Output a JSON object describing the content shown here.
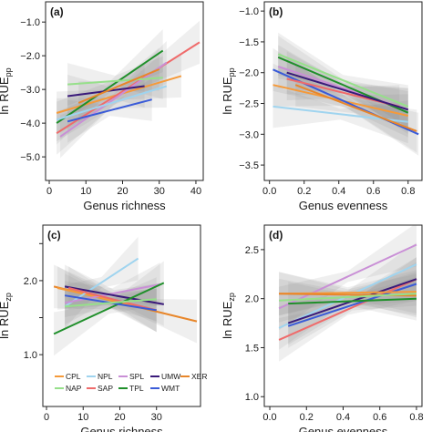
{
  "legend": [
    {
      "name": "CPL",
      "color": "#f59a3a"
    },
    {
      "name": "NPL",
      "color": "#9fd4ef"
    },
    {
      "name": "SPL",
      "color": "#c98fd6"
    },
    {
      "name": "UMW",
      "color": "#3a1a7a"
    },
    {
      "name": "XER",
      "color": "#e8862a"
    },
    {
      "name": "NAP",
      "color": "#96e08a"
    },
    {
      "name": "SAP",
      "color": "#ef6b6b"
    },
    {
      "name": "TPL",
      "color": "#1f8f2a"
    },
    {
      "name": "WMT",
      "color": "#3a5bd8"
    }
  ],
  "chart_data": [
    {
      "panel": "(a)",
      "type": "line",
      "xlabel": "Genus richness",
      "ylabel_main": "ln RUE",
      "ylabel_sub": "pp",
      "xlim": [
        -1,
        42
      ],
      "ylim": [
        -5.7,
        -0.4
      ],
      "xticks": [
        0,
        10,
        20,
        30,
        40
      ],
      "yticks": [
        -5.0,
        -4.0,
        -3.0,
        -2.0,
        -1.0
      ],
      "ytick_labels": [
        "−5.0",
        "−4.0",
        "−3.0",
        "−2.0",
        "−1.0"
      ],
      "series": [
        {
          "name": "CPL",
          "x": [
            2,
            36
          ],
          "y": [
            -3.7,
            -2.6
          ]
        },
        {
          "name": "SAP",
          "x": [
            2,
            41
          ],
          "y": [
            -4.3,
            -1.6
          ]
        },
        {
          "name": "TPL",
          "x": [
            2,
            31
          ],
          "y": [
            -4.0,
            -1.85
          ]
        },
        {
          "name": "SPL",
          "x": [
            3,
            32
          ],
          "y": [
            -4.4,
            -2.2
          ]
        },
        {
          "name": "NAP",
          "x": [
            5,
            31
          ],
          "y": [
            -2.85,
            -2.65
          ]
        },
        {
          "name": "UMW",
          "x": [
            5,
            26
          ],
          "y": [
            -3.2,
            -2.9
          ]
        },
        {
          "name": "WMT",
          "x": [
            5,
            28
          ],
          "y": [
            -3.95,
            -3.3
          ]
        },
        {
          "name": "XER",
          "x": [
            8,
            30
          ],
          "y": [
            -3.4,
            -2.4
          ]
        },
        {
          "name": "NPL",
          "x": [
            2,
            32
          ],
          "y": [
            -3.9,
            -2.9
          ]
        }
      ]
    },
    {
      "panel": "(b)",
      "type": "line",
      "xlabel": "Genus evenness",
      "ylabel_main": "ln RUE",
      "ylabel_sub": "pp",
      "xlim": [
        -0.03,
        0.88
      ],
      "ylim": [
        -3.75,
        -0.85
      ],
      "xticks": [
        0.0,
        0.2,
        0.4,
        0.6,
        0.8
      ],
      "yticks": [
        -3.5,
        -3.0,
        -2.5,
        -2.0,
        -1.5,
        -1.0
      ],
      "xtick_labels": [
        "0.0",
        "0.2",
        "0.4",
        "0.6",
        "0.8"
      ],
      "ytick_labels": [
        "−3.5",
        "−3.0",
        "−2.5",
        "−2.0",
        "−1.5",
        "−1.0"
      ],
      "series": [
        {
          "name": "NPL",
          "x": [
            0.02,
            0.8
          ],
          "y": [
            -2.55,
            -2.8
          ]
        },
        {
          "name": "CPL",
          "x": [
            0.02,
            0.8
          ],
          "y": [
            -2.2,
            -2.7
          ]
        },
        {
          "name": "WMT",
          "x": [
            0.02,
            0.86
          ],
          "y": [
            -1.95,
            -3.0
          ]
        },
        {
          "name": "SPL",
          "x": [
            0.05,
            0.8
          ],
          "y": [
            -1.9,
            -2.6
          ]
        },
        {
          "name": "TPL",
          "x": [
            0.05,
            0.8
          ],
          "y": [
            -1.75,
            -2.65
          ]
        },
        {
          "name": "NAP",
          "x": [
            0.05,
            0.8
          ],
          "y": [
            -1.7,
            -2.55
          ]
        },
        {
          "name": "SAP",
          "x": [
            0.1,
            0.75
          ],
          "y": [
            -2.1,
            -2.55
          ]
        },
        {
          "name": "UMW",
          "x": [
            0.1,
            0.8
          ],
          "y": [
            -2.0,
            -2.6
          ]
        },
        {
          "name": "XER",
          "x": [
            0.15,
            0.85
          ],
          "y": [
            -2.2,
            -2.95
          ]
        }
      ]
    },
    {
      "panel": "(c)",
      "type": "line",
      "xlabel": "Genus richness",
      "ylabel_main": "ln RUE",
      "ylabel_sub": "zp",
      "xlim": [
        -1,
        42
      ],
      "ylim": [
        0.3,
        2.75
      ],
      "xticks": [
        0,
        10,
        20,
        30
      ],
      "yticks": [
        1.0,
        1.5,
        2.0,
        2.5
      ],
      "ytick_labels": [
        "1.0",
        "",
        "2.0",
        ""
      ],
      "series": [
        {
          "name": "XER",
          "x": [
            2,
            41
          ],
          "y": [
            1.92,
            1.45
          ]
        },
        {
          "name": "CPL",
          "x": [
            3,
            30
          ],
          "y": [
            1.9,
            1.6
          ]
        },
        {
          "name": "NPL",
          "x": [
            5,
            25
          ],
          "y": [
            1.65,
            2.3
          ]
        },
        {
          "name": "SPL",
          "x": [
            5,
            31
          ],
          "y": [
            1.7,
            1.95
          ]
        },
        {
          "name": "UMW",
          "x": [
            5,
            32
          ],
          "y": [
            1.92,
            1.68
          ]
        },
        {
          "name": "SAP",
          "x": [
            6,
            30
          ],
          "y": [
            1.9,
            1.6
          ]
        },
        {
          "name": "TPL",
          "x": [
            2,
            32
          ],
          "y": [
            1.28,
            1.97
          ]
        },
        {
          "name": "WMT",
          "x": [
            5,
            30
          ],
          "y": [
            1.8,
            1.6
          ]
        },
        {
          "name": "NAP",
          "x": [
            5,
            30
          ],
          "y": [
            1.65,
            1.75
          ]
        }
      ]
    },
    {
      "panel": "(d)",
      "type": "line",
      "xlabel": "Genus evenness",
      "ylabel_main": "ln RUE",
      "ylabel_sub": "zp",
      "xlim": [
        -0.03,
        0.83
      ],
      "ylim": [
        0.9,
        2.75
      ],
      "xticks": [
        0.0,
        0.2,
        0.4,
        0.6,
        0.8
      ],
      "yticks": [
        1.0,
        1.5,
        2.0,
        2.5
      ],
      "xtick_labels": [
        "0.0",
        "0.2",
        "0.4",
        "0.6",
        "0.8"
      ],
      "ytick_labels": [
        "1.0",
        "1.5",
        "2.0",
        "2.5"
      ],
      "series": [
        {
          "name": "SPL",
          "x": [
            0.05,
            0.8
          ],
          "y": [
            1.9,
            2.55
          ]
        },
        {
          "name": "NPL",
          "x": [
            0.05,
            0.8
          ],
          "y": [
            1.7,
            2.35
          ]
        },
        {
          "name": "SAP",
          "x": [
            0.05,
            0.8
          ],
          "y": [
            1.58,
            2.2
          ]
        },
        {
          "name": "UMW",
          "x": [
            0.1,
            0.8
          ],
          "y": [
            1.75,
            2.2
          ]
        },
        {
          "name": "WMT",
          "x": [
            0.1,
            0.8
          ],
          "y": [
            1.72,
            2.15
          ]
        },
        {
          "name": "CPL",
          "x": [
            0.05,
            0.8
          ],
          "y": [
            2.05,
            2.07
          ]
        },
        {
          "name": "XER",
          "x": [
            0.05,
            0.8
          ],
          "y": [
            2.05,
            2.03
          ]
        },
        {
          "name": "NAP",
          "x": [
            0.05,
            0.8
          ],
          "y": [
            1.98,
            2.05
          ]
        },
        {
          "name": "TPL",
          "x": [
            0.1,
            0.8
          ],
          "y": [
            1.95,
            2.0
          ]
        }
      ]
    }
  ]
}
